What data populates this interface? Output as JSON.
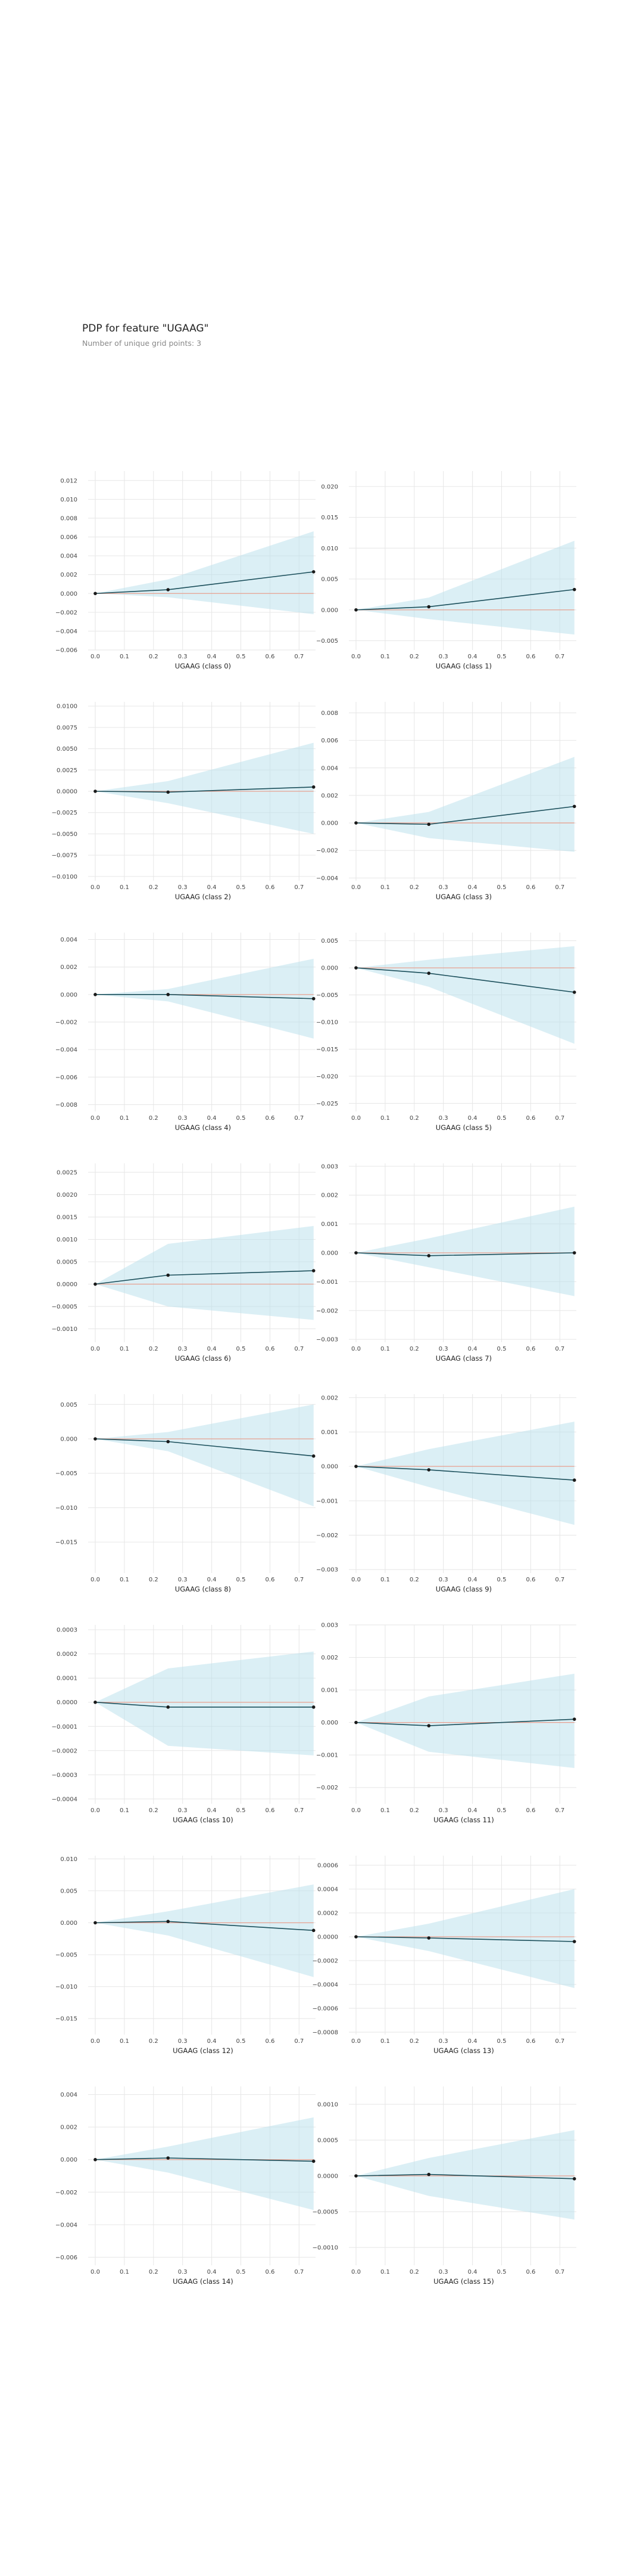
{
  "figure": {
    "title": "PDP for feature \"UGAAG\"",
    "subtitle": "Number of unique grid points: 3"
  },
  "colors": {
    "line": "#1b4f5b",
    "band": "#b7dfec",
    "baseline": "#e8a090",
    "grid": "#e6e6e6"
  },
  "chart_data": [
    {
      "type": "line",
      "xlabel": "UGAAG (class 0)",
      "x": [
        0,
        0.25,
        0.75
      ],
      "y": [
        0,
        0.0004,
        0.0023
      ],
      "band_low": [
        0,
        -0.0004,
        -0.0022
      ],
      "band_high": [
        0,
        0.0015,
        0.0066
      ],
      "xticks": [
        0.0,
        0.1,
        0.2,
        0.3,
        0.4,
        0.5,
        0.6,
        0.7
      ],
      "ylim": [
        -0.006,
        0.013
      ],
      "yticks": [
        -0.006,
        -0.004,
        -0.002,
        0.0,
        0.002,
        0.004,
        0.006,
        0.008,
        0.01,
        0.012
      ],
      "ytick_labels": [
        "−0.006",
        "−0.004",
        "−0.002",
        "0.000",
        "0.002",
        "0.004",
        "0.006",
        "0.008",
        "0.010",
        "0.012"
      ]
    },
    {
      "type": "line",
      "xlabel": "UGAAG (class 1)",
      "x": [
        0,
        0.25,
        0.75
      ],
      "y": [
        0,
        0.0005,
        0.0033
      ],
      "band_low": [
        0,
        -0.0015,
        -0.004
      ],
      "band_high": [
        0,
        0.002,
        0.0112
      ],
      "xticks": [
        0.0,
        0.1,
        0.2,
        0.3,
        0.4,
        0.5,
        0.6,
        0.7
      ],
      "ylim": [
        -0.0065,
        0.0225
      ],
      "yticks": [
        -0.005,
        0.0,
        0.005,
        0.01,
        0.015,
        0.02
      ],
      "ytick_labels": [
        "−0.005",
        "0.000",
        "0.005",
        "0.010",
        "0.015",
        "0.020"
      ]
    },
    {
      "type": "line",
      "xlabel": "UGAAG (class 2)",
      "x": [
        0,
        0.25,
        0.75
      ],
      "y": [
        0,
        -0.0001,
        0.0005
      ],
      "band_low": [
        0,
        -0.0014,
        -0.005
      ],
      "band_high": [
        0,
        0.0012,
        0.0057
      ],
      "xticks": [
        0.0,
        0.1,
        0.2,
        0.3,
        0.4,
        0.5,
        0.6,
        0.7
      ],
      "ylim": [
        -0.0105,
        0.0105
      ],
      "yticks": [
        -0.01,
        -0.0075,
        -0.005,
        -0.0025,
        0.0,
        0.0025,
        0.005,
        0.0075,
        0.01
      ],
      "ytick_labels": [
        "−0.0100",
        "−0.0075",
        "−0.0050",
        "−0.0025",
        "0.0000",
        "0.0025",
        "0.0050",
        "0.0075",
        "0.0100"
      ]
    },
    {
      "type": "line",
      "xlabel": "UGAAG (class 3)",
      "x": [
        0,
        0.25,
        0.75
      ],
      "y": [
        0,
        -0.0001,
        0.0012
      ],
      "band_low": [
        0,
        -0.0011,
        -0.0021
      ],
      "band_high": [
        0,
        0.0008,
        0.0048
      ],
      "xticks": [
        0.0,
        0.1,
        0.2,
        0.3,
        0.4,
        0.5,
        0.6,
        0.7
      ],
      "ylim": [
        -0.0042,
        0.0088
      ],
      "yticks": [
        -0.004,
        -0.002,
        0.0,
        0.002,
        0.004,
        0.006,
        0.008
      ],
      "ytick_labels": [
        "−0.004",
        "−0.002",
        "0.000",
        "0.002",
        "0.004",
        "0.006",
        "0.008"
      ]
    },
    {
      "type": "line",
      "xlabel": "UGAAG (class 4)",
      "x": [
        0,
        0.25,
        0.75
      ],
      "y": [
        0,
        0,
        -0.0003
      ],
      "band_low": [
        0,
        -0.0005,
        -0.0032
      ],
      "band_high": [
        0,
        0.0004,
        0.0026
      ],
      "xticks": [
        0.0,
        0.1,
        0.2,
        0.3,
        0.4,
        0.5,
        0.6,
        0.7
      ],
      "ylim": [
        -0.0085,
        0.0045
      ],
      "yticks": [
        -0.008,
        -0.006,
        -0.004,
        -0.002,
        0.0,
        0.002,
        0.004
      ],
      "ytick_labels": [
        "−0.008",
        "−0.006",
        "−0.004",
        "−0.002",
        "0.000",
        "0.002",
        "0.004"
      ]
    },
    {
      "type": "line",
      "xlabel": "UGAAG (class 5)",
      "x": [
        0,
        0.25,
        0.75
      ],
      "y": [
        0,
        -0.001,
        -0.0045
      ],
      "band_low": [
        0,
        -0.0035,
        -0.014
      ],
      "band_high": [
        0,
        0.0015,
        0.004
      ],
      "xticks": [
        0.0,
        0.1,
        0.2,
        0.3,
        0.4,
        0.5,
        0.6,
        0.7
      ],
      "ylim": [
        -0.0265,
        0.0065
      ],
      "yticks": [
        -0.025,
        -0.02,
        -0.015,
        -0.01,
        -0.005,
        0.0,
        0.005
      ],
      "ytick_labels": [
        "−0.025",
        "−0.020",
        "−0.015",
        "−0.010",
        "−0.005",
        "0.000",
        "0.005"
      ]
    },
    {
      "type": "line",
      "xlabel": "UGAAG (class 6)",
      "x": [
        0,
        0.25,
        0.75
      ],
      "y": [
        0,
        0.0002,
        0.0003
      ],
      "band_low": [
        0,
        -0.0005,
        -0.0008
      ],
      "band_high": [
        0,
        0.0009,
        0.0013
      ],
      "xticks": [
        0.0,
        0.1,
        0.2,
        0.3,
        0.4,
        0.5,
        0.6,
        0.7
      ],
      "ylim": [
        -0.0013,
        0.0027
      ],
      "yticks": [
        -0.001,
        -0.0005,
        0.0,
        0.0005,
        0.001,
        0.0015,
        0.002,
        0.0025
      ],
      "ytick_labels": [
        "−0.0010",
        "−0.0005",
        "0.0000",
        "0.0005",
        "0.0010",
        "0.0015",
        "0.0020",
        "0.0025"
      ]
    },
    {
      "type": "line",
      "xlabel": "UGAAG (class 7)",
      "x": [
        0,
        0.25,
        0.75
      ],
      "y": [
        0,
        -0.0001,
        0
      ],
      "band_low": [
        0,
        -0.0005,
        -0.0015
      ],
      "band_high": [
        0,
        0.0005,
        0.0016
      ],
      "xticks": [
        0.0,
        0.1,
        0.2,
        0.3,
        0.4,
        0.5,
        0.6,
        0.7
      ],
      "ylim": [
        -0.0031,
        0.0031
      ],
      "yticks": [
        -0.003,
        -0.002,
        -0.001,
        0.0,
        0.001,
        0.002,
        0.003
      ],
      "ytick_labels": [
        "−0.003",
        "−0.002",
        "−0.001",
        "0.000",
        "0.001",
        "0.002",
        "0.003"
      ]
    },
    {
      "type": "line",
      "xlabel": "UGAAG (class 8)",
      "x": [
        0,
        0.25,
        0.75
      ],
      "y": [
        0,
        -0.0004,
        -0.0025
      ],
      "band_low": [
        0,
        -0.0018,
        -0.0098
      ],
      "band_high": [
        0,
        0.001,
        0.005
      ],
      "xticks": [
        0.0,
        0.1,
        0.2,
        0.3,
        0.4,
        0.5,
        0.6,
        0.7
      ],
      "ylim": [
        -0.0195,
        0.0065
      ],
      "yticks": [
        -0.015,
        -0.01,
        -0.005,
        0.0,
        0.005
      ],
      "ytick_labels": [
        "−0.015",
        "−0.010",
        "−0.005",
        "0.000",
        "0.005"
      ]
    },
    {
      "type": "line",
      "xlabel": "UGAAG (class 9)",
      "x": [
        0,
        0.25,
        0.75
      ],
      "y": [
        0,
        -0.0001,
        -0.0004
      ],
      "band_low": [
        0,
        -0.0006,
        -0.0017
      ],
      "band_high": [
        0,
        0.0005,
        0.0013
      ],
      "xticks": [
        0.0,
        0.1,
        0.2,
        0.3,
        0.4,
        0.5,
        0.6,
        0.7
      ],
      "ylim": [
        -0.0031,
        0.0021
      ],
      "yticks": [
        -0.003,
        -0.002,
        -0.001,
        0.0,
        0.001,
        0.002
      ],
      "ytick_labels": [
        "−0.003",
        "−0.002",
        "−0.001",
        "0.000",
        "0.001",
        "0.002"
      ]
    },
    {
      "type": "line",
      "xlabel": "UGAAG (class 10)",
      "x": [
        0,
        0.25,
        0.75
      ],
      "y": [
        0,
        -2e-05,
        -2e-05
      ],
      "band_low": [
        0,
        -0.00018,
        -0.00022
      ],
      "band_high": [
        0,
        0.00014,
        0.00021
      ],
      "xticks": [
        0.0,
        0.1,
        0.2,
        0.3,
        0.4,
        0.5,
        0.6,
        0.7
      ],
      "ylim": [
        -0.00042,
        0.00032
      ],
      "yticks": [
        -0.0004,
        -0.0003,
        -0.0002,
        -0.0001,
        0.0,
        0.0001,
        0.0002,
        0.0003
      ],
      "ytick_labels": [
        "−0.0004",
        "−0.0003",
        "−0.0002",
        "−0.0001",
        "0.0000",
        "0.0001",
        "0.0002",
        "0.0003"
      ]
    },
    {
      "type": "line",
      "xlabel": "UGAAG (class 11)",
      "x": [
        0,
        0.25,
        0.75
      ],
      "y": [
        0,
        -0.0001,
        0.0001
      ],
      "band_low": [
        0,
        -0.0009,
        -0.0014
      ],
      "band_high": [
        0,
        0.0008,
        0.0015
      ],
      "xticks": [
        0.0,
        0.1,
        0.2,
        0.3,
        0.4,
        0.5,
        0.6,
        0.7
      ],
      "ylim": [
        -0.0025,
        0.003
      ],
      "yticks": [
        -0.002,
        -0.001,
        0.0,
        0.001,
        0.002,
        0.003
      ],
      "ytick_labels": [
        "−0.002",
        "−0.001",
        "0.000",
        "0.001",
        "0.002",
        "0.003"
      ]
    },
    {
      "type": "line",
      "xlabel": "UGAAG (class 12)",
      "x": [
        0,
        0.25,
        0.75
      ],
      "y": [
        0,
        0.0002,
        -0.0012
      ],
      "band_low": [
        0,
        -0.002,
        -0.0085
      ],
      "band_high": [
        0,
        0.0018,
        0.006
      ],
      "xticks": [
        0.0,
        0.1,
        0.2,
        0.3,
        0.4,
        0.5,
        0.6,
        0.7
      ],
      "ylim": [
        -0.0175,
        0.0105
      ],
      "yticks": [
        -0.015,
        -0.01,
        -0.005,
        0.0,
        0.005,
        0.01
      ],
      "ytick_labels": [
        "−0.015",
        "−0.010",
        "−0.005",
        "0.000",
        "0.005",
        "0.010"
      ]
    },
    {
      "type": "line",
      "xlabel": "UGAAG (class 13)",
      "x": [
        0,
        0.25,
        0.75
      ],
      "y": [
        0,
        -1e-05,
        -4e-05
      ],
      "band_low": [
        0,
        -0.00012,
        -0.00043
      ],
      "band_high": [
        0,
        0.00011,
        0.0004
      ],
      "xticks": [
        0.0,
        0.1,
        0.2,
        0.3,
        0.4,
        0.5,
        0.6,
        0.7
      ],
      "ylim": [
        -0.00082,
        0.00068
      ],
      "yticks": [
        -0.0008,
        -0.0006,
        -0.0004,
        -0.0002,
        0.0,
        0.0002,
        0.0004,
        0.0006
      ],
      "ytick_labels": [
        "−0.0008",
        "−0.0006",
        "−0.0004",
        "−0.0002",
        "0.0000",
        "0.0002",
        "0.0004",
        "0.0006"
      ]
    },
    {
      "type": "line",
      "xlabel": "UGAAG (class 14)",
      "x": [
        0,
        0.25,
        0.75
      ],
      "y": [
        0,
        0.0001,
        -0.0001
      ],
      "band_low": [
        0,
        -0.0008,
        -0.0031
      ],
      "band_high": [
        0,
        0.0008,
        0.0026
      ],
      "xticks": [
        0.0,
        0.1,
        0.2,
        0.3,
        0.4,
        0.5,
        0.6,
        0.7
      ],
      "ylim": [
        -0.0065,
        0.0045
      ],
      "yticks": [
        -0.006,
        -0.004,
        -0.002,
        0.0,
        0.002,
        0.004
      ],
      "ytick_labels": [
        "−0.006",
        "−0.004",
        "−0.002",
        "0.000",
        "0.002",
        "0.004"
      ]
    },
    {
      "type": "line",
      "xlabel": "UGAAG (class 15)",
      "x": [
        0,
        0.25,
        0.75
      ],
      "y": [
        0,
        2e-05,
        -4e-05
      ],
      "band_low": [
        0,
        -0.00028,
        -0.00061
      ],
      "band_high": [
        0,
        0.00025,
        0.00064
      ],
      "xticks": [
        0.0,
        0.1,
        0.2,
        0.3,
        0.4,
        0.5,
        0.6,
        0.7
      ],
      "ylim": [
        -0.00125,
        0.00125
      ],
      "yticks": [
        -0.001,
        -0.0005,
        0.0,
        0.0005,
        0.001
      ],
      "ytick_labels": [
        "−0.0010",
        "−0.0005",
        "0.0000",
        "0.0005",
        "0.0010"
      ]
    }
  ]
}
